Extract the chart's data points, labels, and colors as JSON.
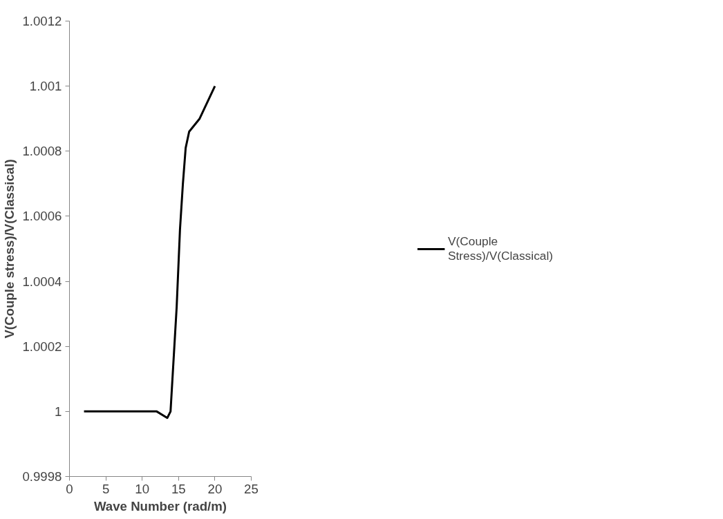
{
  "chart_data": {
    "type": "line",
    "xlabel": "Wave Number (rad/m)",
    "ylabel": "V(Couple stress)/V(Classical)",
    "xlim": [
      0,
      25
    ],
    "xticks": [
      0,
      5,
      10,
      15,
      20,
      25
    ],
    "ylim": [
      0.9998,
      1.0012
    ],
    "yticks": [
      {
        "value": 0.9998,
        "label": "0.9998"
      },
      {
        "value": 1,
        "label": "1"
      },
      {
        "value": 1.0002,
        "label": "1.0002"
      },
      {
        "value": 1.0004,
        "label": "1.0004"
      },
      {
        "value": 1.0006,
        "label": "1.0006"
      },
      {
        "value": 1.0008,
        "label": "1.0008"
      },
      {
        "value": 1.001,
        "label": "1.001"
      },
      {
        "value": 1.0012,
        "label": "1.0012"
      }
    ],
    "grid": false,
    "legend": "right",
    "marker": "none",
    "line_style": "solid",
    "series": [
      {
        "name": "V(Couple Stress)/V(Classical)",
        "color": "#000000",
        "x": [
          2,
          12,
          13.45,
          13.9,
          14.74,
          15.2,
          15.6,
          15.98,
          16.46,
          17.9,
          20
        ],
        "values": [
          1,
          1,
          0.99998,
          1,
          1.00032,
          1.00056,
          1.0007,
          1.00081,
          1.00086,
          1.0009,
          1.001
        ]
      }
    ]
  }
}
